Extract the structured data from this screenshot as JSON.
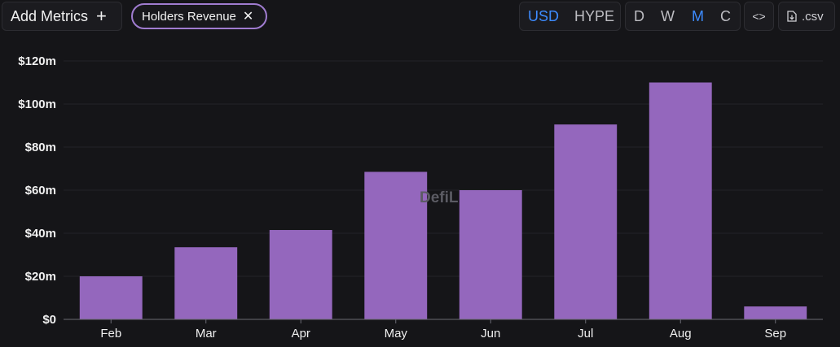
{
  "toolbar": {
    "add_metrics_label": "Add Metrics",
    "add_icon": "plus-icon",
    "metric_chip_label": "Holders Revenue",
    "chip_close_icon": "close-icon",
    "currency_options": [
      "USD",
      "HYPE"
    ],
    "currency_selected": "USD",
    "period_options": [
      "D",
      "W",
      "M",
      "C"
    ],
    "period_selected": "M",
    "embed_label": "<>",
    "embed_icon": "code-icon",
    "csv_label": ".csv",
    "csv_icon": "file-download-icon"
  },
  "watermark": "DefiL",
  "colors": {
    "background": "#151518",
    "bar": "#9467bd",
    "chip_border": "#a07cd0",
    "active_option": "#3d8bff"
  },
  "chart_data": {
    "type": "bar",
    "categories": [
      "Feb",
      "Mar",
      "Apr",
      "May",
      "Jun",
      "Jul",
      "Aug",
      "Sep"
    ],
    "values": [
      20,
      33.5,
      41.5,
      68.5,
      60,
      90.5,
      110,
      6
    ],
    "unit": "millions USD",
    "ylim": [
      0,
      120
    ],
    "yticks": [
      0,
      20,
      40,
      60,
      80,
      100,
      120
    ],
    "ytick_labels": [
      "$0",
      "$20m",
      "$40m",
      "$60m",
      "$80m",
      "$100m",
      "$120m"
    ],
    "grid": true,
    "legend": "none"
  }
}
